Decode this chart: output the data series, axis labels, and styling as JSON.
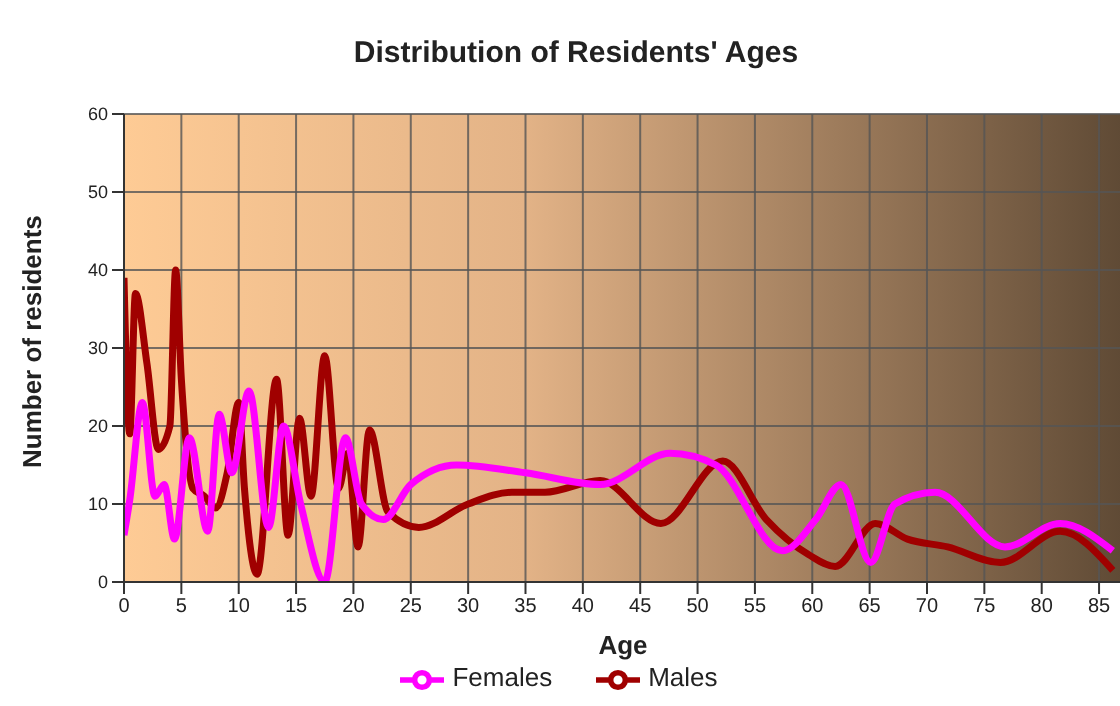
{
  "chart_data": {
    "type": "line",
    "title": "Distribution of Residents' Ages",
    "xlabel": "Age",
    "ylabel": "Number of residents",
    "xlim": [
      0,
      87
    ],
    "xticks": [
      0,
      5,
      10,
      15,
      20,
      25,
      30,
      35,
      40,
      45,
      50,
      55,
      60,
      65,
      70,
      75,
      80,
      85
    ],
    "ylim": [
      0,
      60
    ],
    "yticks": [
      0,
      10,
      20,
      30,
      40,
      50,
      60
    ],
    "grid": true,
    "legend": "bottom",
    "marker": "none",
    "line_style": "solid",
    "series": [
      {
        "name": "Males",
        "color": "#a00000",
        "x": [
          0,
          0.5,
          1,
          2,
          3,
          4,
          4.5,
          5,
          6,
          7,
          8,
          9,
          10,
          10.5,
          11.6,
          13.3,
          14.3,
          15.3,
          16.3,
          17.5,
          18.7,
          19.5,
          20.4,
          21.4,
          23,
          25.7,
          30,
          33.8,
          36.7,
          41.5,
          46.8,
          52.2,
          56,
          59.7,
          62,
          65.5,
          68.3,
          71.8,
          76.4,
          81.6,
          86.2
        ],
        "values": [
          39,
          19,
          37,
          28,
          17,
          20,
          40,
          26,
          12,
          11,
          9.5,
          14,
          23,
          12,
          1,
          26,
          6,
          21,
          11,
          29,
          12,
          16.5,
          4.5,
          19.5,
          9,
          7,
          10,
          11.5,
          11.5,
          13,
          7.5,
          15.5,
          8,
          3.5,
          2,
          7.5,
          5.5,
          4.5,
          2.5,
          6.5,
          1.5
        ]
      },
      {
        "name": "Females",
        "color": "#ff00ff",
        "x": [
          0,
          0.5,
          1.6,
          2.7,
          3.5,
          4.4,
          5.7,
          7.3,
          8.3,
          9.4,
          10.9,
          12.6,
          13.9,
          15.4,
          17.5,
          19.3,
          20.7,
          22.6,
          25,
          29,
          35,
          41.5,
          47.6,
          51.6,
          57.4,
          60.3,
          62.5,
          65.1,
          67.2,
          70.7,
          76.8,
          81.6,
          86.2
        ],
        "values": [
          6,
          10.5,
          23,
          11,
          12.5,
          5.5,
          18.5,
          6.5,
          21.5,
          14,
          24.5,
          7,
          20,
          10,
          0,
          18.5,
          10,
          8,
          12.5,
          15,
          14,
          12.5,
          16.5,
          15,
          4,
          8,
          12.5,
          2.5,
          10,
          11.5,
          4.5,
          7.5,
          4
        ]
      }
    ]
  }
}
